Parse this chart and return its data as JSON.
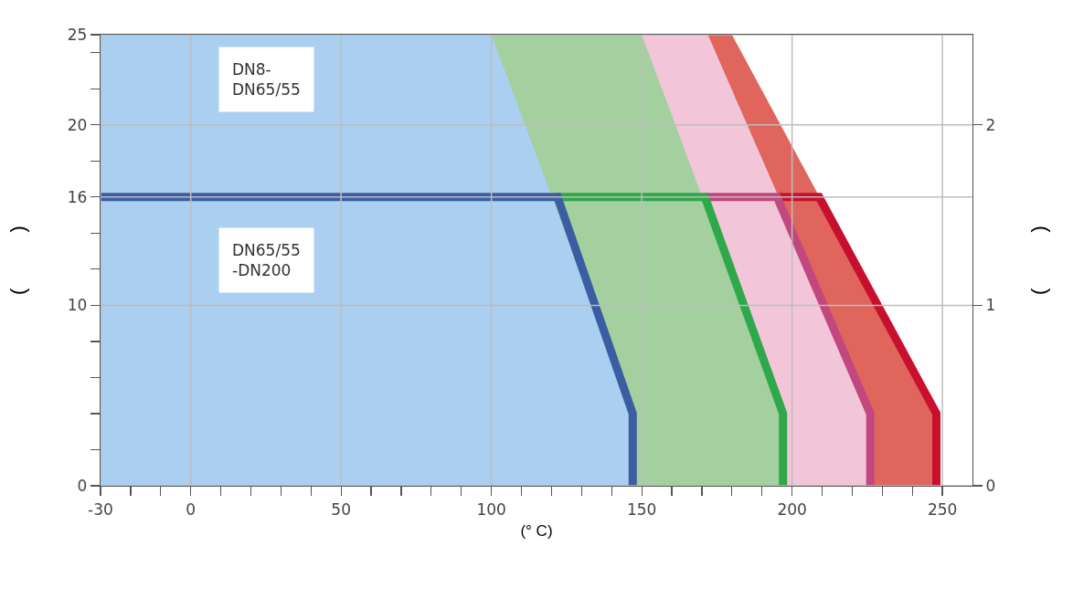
{
  "chart_data": {
    "type": "area",
    "xlabel": "(° C)",
    "ylabel": "(          )",
    "y2label": "(          )",
    "xlim": [
      -30,
      260
    ],
    "ylim": [
      0,
      25
    ],
    "y2lim": [
      0,
      2.5
    ],
    "xticks": [
      -30,
      {
        "value": -20,
        "label": null
      },
      {
        "value": -10,
        "label": null
      },
      0,
      {
        "value": 10,
        "label": null
      },
      {
        "value": 20,
        "label": null
      },
      {
        "value": 30,
        "label": null
      },
      {
        "value": 40,
        "label": null
      },
      50,
      {
        "value": 60,
        "label": null
      },
      {
        "value": 70,
        "label": null
      },
      {
        "value": 80,
        "label": null
      },
      {
        "value": 90,
        "label": null
      },
      100,
      {
        "value": 110,
        "label": null
      },
      {
        "value": 120,
        "label": null
      },
      {
        "value": 130,
        "label": null
      },
      {
        "value": 140,
        "label": null
      },
      150,
      {
        "value": 160,
        "label": null
      },
      {
        "value": 170,
        "label": null
      },
      {
        "value": 180,
        "label": null
      },
      {
        "value": 190,
        "label": null
      },
      200,
      {
        "value": 210,
        "label": null
      },
      {
        "value": 220,
        "label": null
      },
      {
        "value": 230,
        "label": null
      },
      {
        "value": 240,
        "label": null
      },
      250
    ],
    "yticks": [
      0,
      {
        "value": 2,
        "label": null
      },
      {
        "value": 4,
        "label": null
      },
      {
        "value": 6,
        "label": null
      },
      {
        "value": 8,
        "label": null
      },
      10,
      {
        "value": 12,
        "label": null
      },
      {
        "value": 14,
        "label": null
      },
      16,
      {
        "value": 18,
        "label": null
      },
      20,
      {
        "value": 22,
        "label": null
      },
      {
        "value": 24,
        "label": null
      },
      25
    ],
    "y2ticks": [
      0,
      1,
      2
    ],
    "grid": true,
    "series": [
      {
        "color": "#e0655c",
        "x": [
          -30,
          180,
          248,
          248
        ],
        "values": [
          25,
          25,
          4,
          0
        ]
      },
      {
        "color": "#f2c6d8",
        "x": [
          -30,
          172,
          227,
          227
        ],
        "values": [
          25,
          25,
          4,
          0
        ]
      },
      {
        "color": "#a3d09e",
        "x": [
          -30,
          150,
          197,
          197
        ],
        "values": [
          25,
          25,
          4,
          0
        ]
      },
      {
        "color": "#abcff0",
        "x": [
          -30,
          100,
          147,
          147
        ],
        "values": [
          25,
          25,
          4,
          0
        ]
      },
      {
        "type": "line",
        "color": "#c8102e",
        "x": [
          195,
          209,
          248,
          248
        ],
        "values": [
          16,
          16,
          4,
          0
        ]
      },
      {
        "type": "line",
        "color": "#c2477f",
        "x": [
          171,
          195,
          226,
          226
        ],
        "values": [
          16,
          16,
          4,
          0
        ]
      },
      {
        "type": "line",
        "color": "#2ea84a",
        "x": [
          122,
          171,
          197,
          197
        ],
        "values": [
          16,
          16,
          4,
          0
        ]
      },
      {
        "type": "line",
        "color": "#3b5ea3",
        "x": [
          -30,
          122,
          147,
          147
        ],
        "values": [
          16,
          16,
          4,
          0
        ]
      }
    ],
    "annotations": [
      "DN8-\nDN65/55",
      "DN65/55\n-DN200"
    ]
  }
}
